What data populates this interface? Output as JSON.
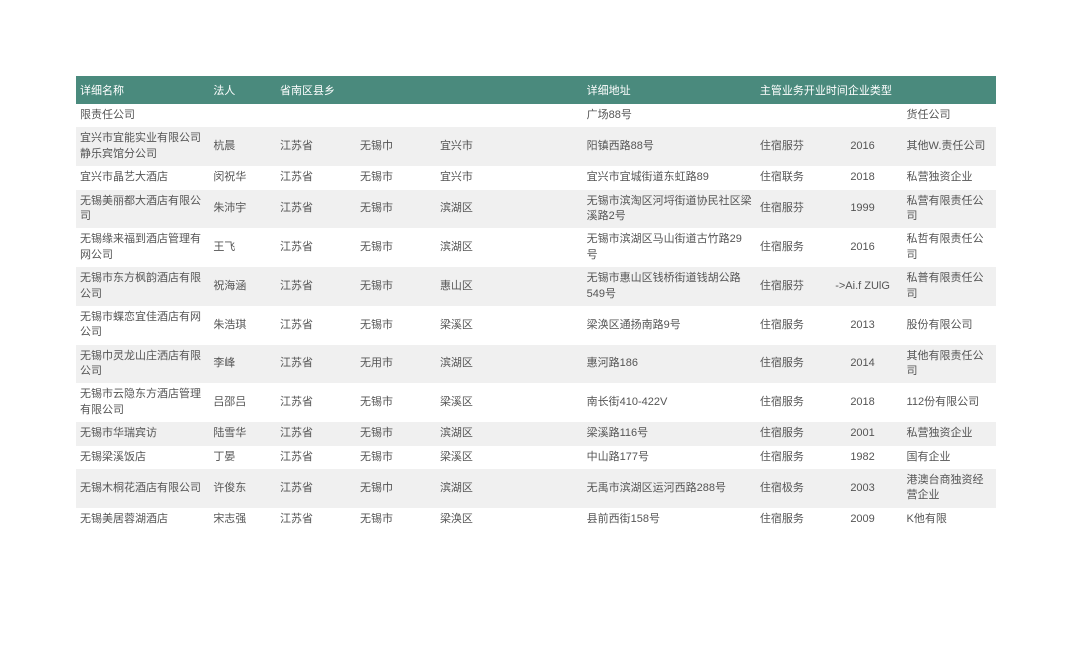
{
  "header": {
    "col0": "详细名称",
    "col1": "法人",
    "col2": "省南区县乡",
    "col5": "详细地址",
    "col6": "主管业务开业时间企业类型"
  },
  "rows": [
    {
      "name": "限责任公司",
      "legal": "",
      "prov": "",
      "city": "",
      "dist": "",
      "addr": "广场88号",
      "biz": "",
      "year": "",
      "type": "货任公司"
    },
    {
      "name": "宜兴市宜能实业有限公司静乐宾馆分公司",
      "legal": "杭晨",
      "prov": "江苏省",
      "city": "无锡巾",
      "dist": "宜兴市",
      "addr": "阳镇西路88号",
      "biz": "住宿服芬",
      "year": "2016",
      "type": "其他W.责任公司"
    },
    {
      "name": "宜兴市晶艺大酒店",
      "legal": "闵祝华",
      "prov": "江苏省",
      "city": "无锡市",
      "dist": "宜兴市",
      "addr": "宜兴市宜城街道东虹路89",
      "biz": "住宿联务",
      "year": "2018",
      "type": "私营独资企业"
    },
    {
      "name": "无锡美丽都大酒店有限公司",
      "legal": "朱沛宇",
      "prov": "江苏省",
      "city": "无锡市",
      "dist": "滨湖区",
      "addr": "无锡市滨淘区河埒街道协民社区梁溪路2号",
      "biz": "住宿服芬",
      "year": "1999",
      "type": "私营有限责任公司"
    },
    {
      "name": "无锡缘来福到酒店管理有网公司",
      "legal": "王飞",
      "prov": "江苏省",
      "city": "无锡市",
      "dist": "滨湖区",
      "addr": "无锡市滨湖区马山街道古竹路29号",
      "biz": "住宿服务",
      "year": "2016",
      "type": "私哲有限责任公司"
    },
    {
      "name": "无锡市东方枫韵酒店有限公司",
      "legal": "祝海涵",
      "prov": "江苏省",
      "city": "无锡市",
      "dist": "惠山区",
      "addr": "无锡市惠山区钱桥街道钱胡公路549号",
      "biz": "住宿服芬",
      "year": "->Ai.f ZUlG",
      "type": "私普有限责任公司"
    },
    {
      "name": "无锡市蝶恋宜佳酒店有网公司",
      "legal": "朱浩琪",
      "prov": "江苏省",
      "city": "无锡市",
      "dist": "梁溪区",
      "addr": "梁涣区通扬南路9号",
      "biz": "住宿服务",
      "year": "2013",
      "type": "股份有限公司"
    },
    {
      "name": "无锡巾灵龙山庄洒店有限公司",
      "legal": "李峰",
      "prov": "江苏省",
      "city": "无用市",
      "dist": "滨湖区",
      "addr": "惠河路186",
      "biz": "住宿服务",
      "year": "2014",
      "type": "其他有限责任公司"
    },
    {
      "name": "无锡市云隐东方酒店管理有限公司",
      "legal": "吕邵吕",
      "prov": "江苏省",
      "city": "无锡市",
      "dist": "梁溪区",
      "addr": "南长街410-422V",
      "biz": "住宿服务",
      "year": "2018",
      "type": "112份有限公司"
    },
    {
      "name": "无锡市华瑞宾访",
      "legal": "陆雪华",
      "prov": "江苏省",
      "city": "无锡市",
      "dist": "滨湖区",
      "addr": "梁溪路116号",
      "biz": "住宿服务",
      "year": "2001",
      "type": "私营独资企业"
    },
    {
      "name": "无锡梁溪饭店",
      "legal": "丁晏",
      "prov": "江苏省",
      "city": "无锡市",
      "dist": "梁溪区",
      "addr": "中山路177号",
      "biz": "住宿服务",
      "year": "1982",
      "type": "国有企业"
    },
    {
      "name": "无锡木桐花酒店有限公司",
      "legal": "许俊东",
      "prov": "江苏省",
      "city": "无锡巾",
      "dist": "滨湖区",
      "addr": "无禹市滨湖区运河西路288号",
      "biz": "住宿极务",
      "year": "2003",
      "type": "港澳台商独资经营企业"
    },
    {
      "name": "无锡美居蓉湖酒店",
      "legal": "宋志强",
      "prov": "江苏省",
      "city": "无锡市",
      "dist": "梁涣区",
      "addr": "县前西街158号",
      "biz": "住宿服务",
      "year": "2009",
      "type": "K他有限"
    }
  ]
}
